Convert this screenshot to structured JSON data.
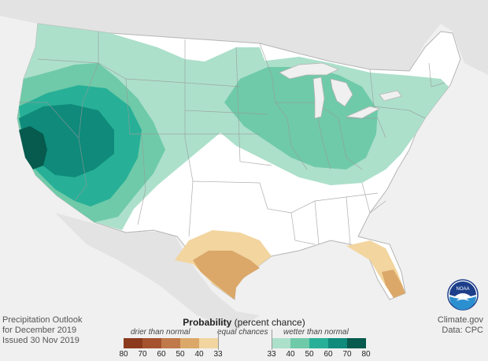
{
  "caption": {
    "line1": "Precipitation Outlook",
    "line2": "for December 2019",
    "line3": "Issued 30 Nov 2019"
  },
  "credit": {
    "line1": "Climate.gov",
    "line2": "Data: CPC"
  },
  "legend": {
    "title_bold": "Probability",
    "title_rest": " (percent chance)",
    "drier_label": "drier than normal",
    "equal_label": "equal chances",
    "wetter_label": "wetter than normal",
    "drier_ticks": [
      "80",
      "70",
      "60",
      "50",
      "40",
      "33"
    ],
    "wetter_ticks": [
      "33",
      "40",
      "50",
      "60",
      "70",
      "80"
    ],
    "drier_colors": [
      "#8c3a1e",
      "#a5522e",
      "#c07a4a",
      "#dba86a",
      "#f2d59f"
    ],
    "wetter_colors": [
      "#ace0cb",
      "#6fcaa9",
      "#27b097",
      "#0f8a7b",
      "#065a4e"
    ]
  },
  "logo": {
    "text": "NOAA"
  }
}
